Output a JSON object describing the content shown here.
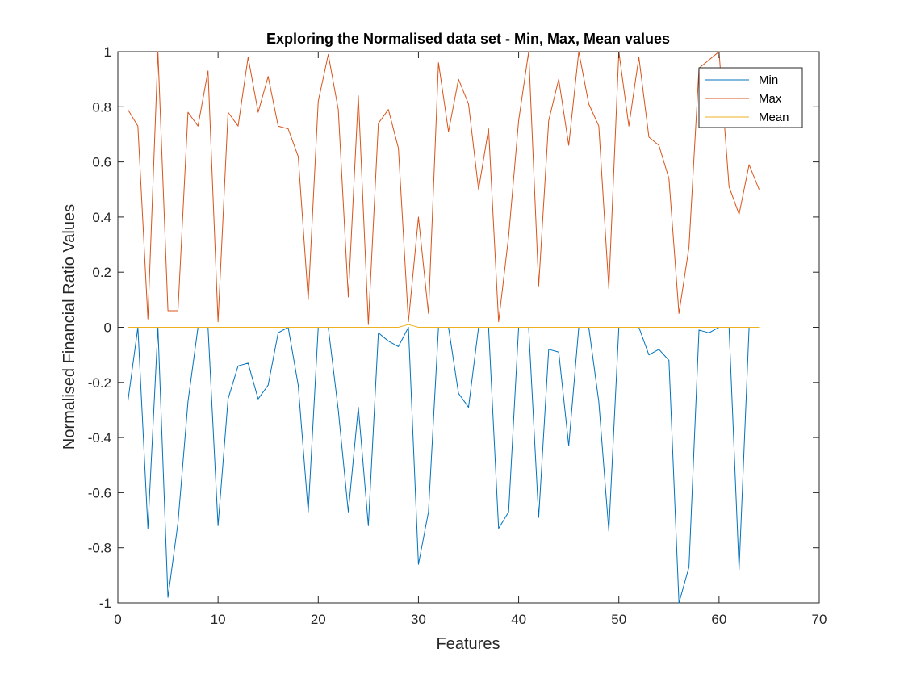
{
  "chart_data": {
    "type": "line",
    "title": "Exploring the Normalised data set - Min, Max, Mean values",
    "xlabel": "Features",
    "ylabel": "Normalised Financial Ratio Values",
    "xlim": [
      0,
      70
    ],
    "ylim": [
      -1,
      1
    ],
    "xticks": [
      0,
      10,
      20,
      30,
      40,
      50,
      60,
      70
    ],
    "xtick_labels": [
      "0",
      "10",
      "20",
      "30",
      "40",
      "50",
      "60",
      "70"
    ],
    "yticks": [
      -1,
      -0.8,
      -0.6,
      -0.4,
      -0.2,
      0,
      0.2,
      0.4,
      0.6,
      0.8,
      1
    ],
    "ytick_labels": [
      "-1",
      "-0.8",
      "-0.6",
      "-0.4",
      "-0.2",
      "0",
      "0.2",
      "0.4",
      "0.6",
      "0.8",
      "1"
    ],
    "grid": false,
    "legend_position": "top-right",
    "x": [
      1,
      2,
      3,
      4,
      5,
      6,
      7,
      8,
      9,
      10,
      11,
      12,
      13,
      14,
      15,
      16,
      17,
      18,
      19,
      20,
      21,
      22,
      23,
      24,
      25,
      26,
      27,
      28,
      29,
      30,
      31,
      32,
      33,
      34,
      35,
      36,
      37,
      38,
      39,
      40,
      41,
      42,
      43,
      44,
      45,
      46,
      47,
      48,
      49,
      50,
      51,
      52,
      53,
      54,
      55,
      56,
      57,
      58,
      59,
      60,
      61,
      62,
      63,
      64
    ],
    "series": [
      {
        "name": "Min",
        "color": "#0072BD",
        "values": [
          -0.27,
          0,
          -0.73,
          0,
          -0.98,
          -0.71,
          -0.27,
          0,
          0,
          -0.72,
          -0.26,
          -0.14,
          -0.13,
          -0.26,
          -0.21,
          -0.02,
          0,
          -0.21,
          -0.67,
          0,
          0,
          -0.3,
          -0.67,
          -0.29,
          -0.72,
          -0.02,
          -0.05,
          -0.07,
          0,
          -0.86,
          -0.67,
          0,
          0,
          -0.24,
          -0.29,
          0,
          0,
          -0.73,
          -0.67,
          0,
          0,
          -0.69,
          -0.08,
          -0.09,
          -0.43,
          0,
          0,
          -0.27,
          -0.74,
          0,
          0,
          0,
          -0.1,
          -0.08,
          -0.12,
          -1.0,
          -0.87,
          -0.01,
          -0.02,
          0,
          0,
          -0.88,
          0,
          0
        ]
      },
      {
        "name": "Max",
        "color": "#D95319",
        "values": [
          0.79,
          0.73,
          0.03,
          1.0,
          0.06,
          0.06,
          0.78,
          0.73,
          0.93,
          0.02,
          0.78,
          0.73,
          0.98,
          0.78,
          0.91,
          0.73,
          0.72,
          0.62,
          0.1,
          0.82,
          0.99,
          0.79,
          0.11,
          0.84,
          0.01,
          0.74,
          0.79,
          0.65,
          0.02,
          0.4,
          0.05,
          0.96,
          0.71,
          0.9,
          0.81,
          0.5,
          0.72,
          0.02,
          0.33,
          0.75,
          1.0,
          0.15,
          0.75,
          0.9,
          0.66,
          1.0,
          0.81,
          0.73,
          0.14,
          1.0,
          0.73,
          0.98,
          0.69,
          0.66,
          0.54,
          0.05,
          0.29,
          0.94,
          0.97,
          1.0,
          0.51,
          0.41,
          0.59,
          0.5
        ]
      },
      {
        "name": "Mean",
        "color": "#EDB120",
        "values": [
          0,
          0,
          0,
          0,
          0,
          0,
          0,
          0,
          0,
          0,
          0,
          0,
          0,
          0,
          0,
          0,
          0,
          0,
          0,
          0,
          0,
          0,
          0,
          0,
          0,
          0,
          0,
          0,
          0.01,
          0,
          0,
          0,
          0,
          0,
          0,
          0,
          0,
          0,
          0,
          0,
          0,
          0,
          0,
          0,
          0,
          0,
          0,
          0,
          0,
          0,
          0,
          0,
          0,
          0,
          0,
          0,
          0,
          0,
          0,
          0,
          0,
          0,
          0,
          0
        ]
      }
    ]
  }
}
